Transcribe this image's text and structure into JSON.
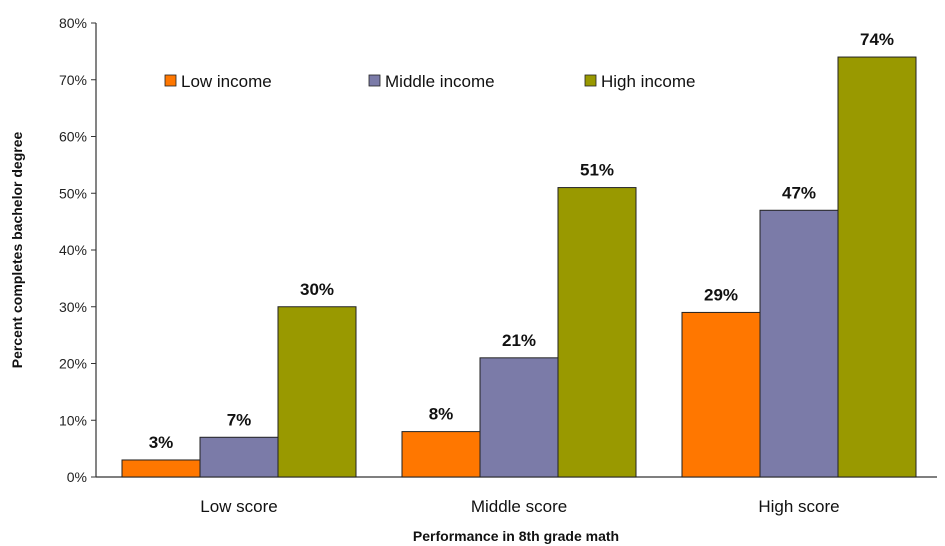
{
  "chart_data": {
    "type": "bar",
    "categories": [
      "Low score",
      "Middle score",
      "High score"
    ],
    "series": [
      {
        "name": "Low income",
        "values": [
          3,
          8,
          29
        ],
        "labels": [
          "3%",
          "8%",
          "29%"
        ],
        "color": "#ff7700"
      },
      {
        "name": "Middle income",
        "values": [
          7,
          21,
          47
        ],
        "labels": [
          "7%",
          "21%",
          "47%"
        ],
        "color": "#7b7ba8"
      },
      {
        "name": "High income",
        "values": [
          30,
          51,
          74
        ],
        "labels": [
          "30%",
          "51%",
          "74%"
        ],
        "color": "#999900"
      }
    ],
    "xlabel": "Performance in 8th grade math",
    "ylabel": "Percent completes bachelor degree",
    "ylim": [
      0,
      80
    ],
    "yticks": [
      0,
      10,
      20,
      30,
      40,
      50,
      60,
      70,
      80
    ],
    "ytick_labels": [
      "0%",
      "10%",
      "20%",
      "30%",
      "40%",
      "50%",
      "60%",
      "70%",
      "80%"
    ],
    "grid": false,
    "legend_position": "top-left"
  }
}
